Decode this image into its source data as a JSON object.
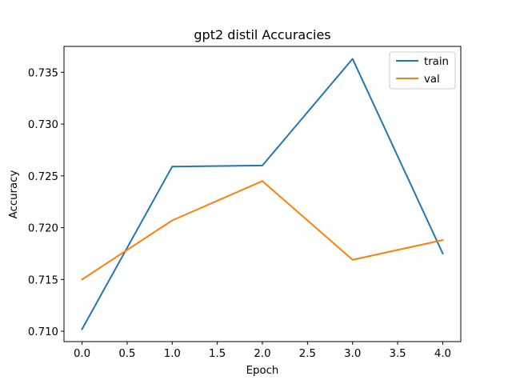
{
  "chart_data": {
    "type": "line",
    "title": "gpt2 distil  Accuracies",
    "xlabel": "Epoch",
    "ylabel": "Accuracy",
    "x": [
      0,
      1,
      2,
      3,
      4
    ],
    "series": [
      {
        "name": "train",
        "color": "#1f77b4",
        "values": [
          0.7102,
          0.7259,
          0.726,
          0.7363,
          0.7175
        ]
      },
      {
        "name": "val",
        "color": "#ff7f0e",
        "values": [
          0.715,
          0.7207,
          0.7245,
          0.7169,
          0.7188
        ]
      }
    ],
    "xlim": [
      -0.2,
      4.2
    ],
    "ylim": [
      0.709,
      0.7375
    ],
    "xticks": [
      0.0,
      0.5,
      1.0,
      1.5,
      2.0,
      2.5,
      3.0,
      3.5,
      4.0
    ],
    "xtick_labels": [
      "0.0",
      "0.5",
      "1.0",
      "1.5",
      "2.0",
      "2.5",
      "3.0",
      "3.5",
      "4.0"
    ],
    "yticks": [
      0.71,
      0.715,
      0.72,
      0.725,
      0.73,
      0.735
    ],
    "ytick_labels": [
      "0.710",
      "0.715",
      "0.720",
      "0.725",
      "0.730",
      "0.735"
    ],
    "grid": false,
    "legend_position": "upper right"
  }
}
